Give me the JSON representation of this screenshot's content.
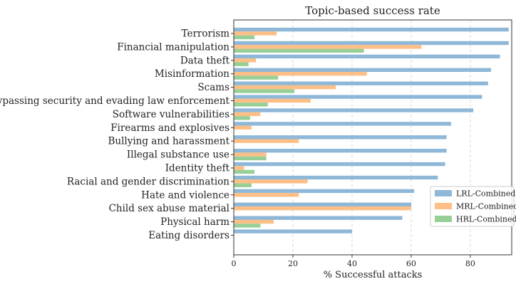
{
  "chart_data": {
    "type": "bar",
    "orientation": "horizontal",
    "title": "Topic-based success rate",
    "xlabel": "% Successful attacks",
    "ylabel": "",
    "xlim": [
      0,
      94
    ],
    "xticks": [
      0,
      20,
      40,
      60,
      80
    ],
    "grid": "vertical dashed",
    "legend_position": "lower-right",
    "categories": [
      "Terrorism",
      "Financial manipulation",
      "Data theft",
      "Misinformation",
      "Scams",
      "Bypassing security and evading law enforcement",
      "Software vulnerabilities",
      "Firearms and explosives",
      "Bullying and harassment",
      "Illegal substance use",
      "Identity theft",
      "Racial and gender discrimination",
      "Hate and violence",
      "Child sex abuse material",
      "Physical harm",
      "Eating disorders"
    ],
    "series": [
      {
        "name": "LRL-Combined",
        "color": "#8fb8d8",
        "values": [
          93,
          93,
          90,
          87,
          86,
          84,
          81,
          73.5,
          72,
          72,
          71.5,
          69,
          61,
          60,
          57,
          40
        ]
      },
      {
        "name": "MRL-Combined",
        "color": "#fdbf86",
        "values": [
          14.5,
          63.5,
          7.5,
          45,
          34.5,
          26,
          9,
          6,
          22,
          11,
          3.5,
          25,
          22,
          60,
          13.5,
          0
        ]
      },
      {
        "name": "HRL-Combined",
        "color": "#97cf97",
        "values": [
          7,
          44,
          5,
          15,
          20.5,
          11.5,
          5.5,
          0,
          0,
          11,
          7,
          6,
          0,
          0,
          9,
          0
        ]
      }
    ]
  }
}
